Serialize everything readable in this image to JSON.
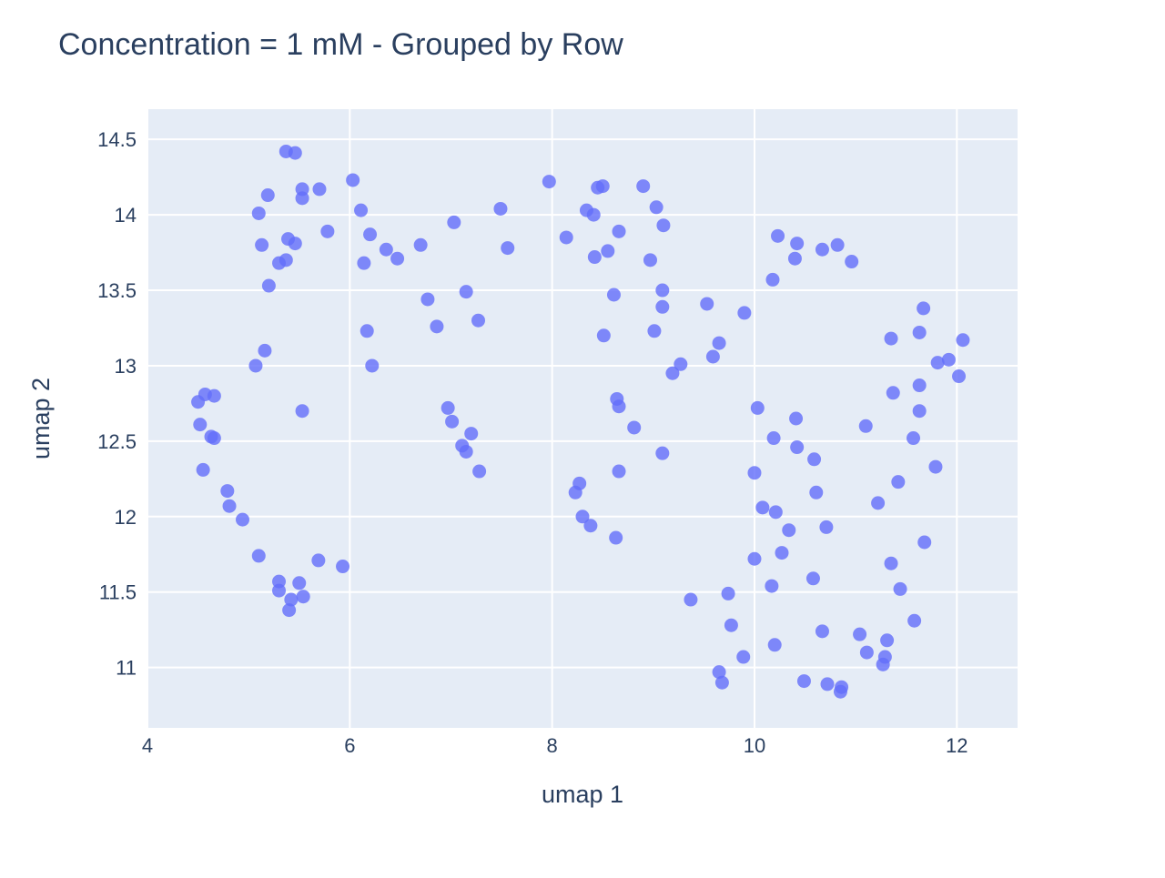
{
  "chart_data": {
    "type": "scatter",
    "title": "Concentration = 1 mM - Grouped by Row",
    "xlabel": "umap 1",
    "ylabel": "umap 2",
    "xlim": [
      4.0,
      12.6
    ],
    "ylim": [
      10.6,
      14.7
    ],
    "x_ticks": [
      4,
      6,
      8,
      10,
      12
    ],
    "x_tick_labels": [
      "4",
      "6",
      "8",
      "10",
      "12"
    ],
    "y_ticks": [
      11,
      11.5,
      12,
      12.5,
      13,
      13.5,
      14,
      14.5
    ],
    "y_tick_labels": [
      "11",
      "11.5",
      "12",
      "12.5",
      "13",
      "13.5",
      "14",
      "14.5"
    ],
    "grid": true,
    "plot_background": "#e5ecf6",
    "grid_color": "#ffffff",
    "marker_color": "#636efa",
    "marker_opacity": 0.8,
    "text_color": "#2a3f5f",
    "series": [
      {
        "points": [
          [
            5.37,
            14.42
          ],
          [
            5.46,
            14.41
          ],
          [
            5.53,
            14.17
          ],
          [
            5.7,
            14.17
          ],
          [
            5.53,
            14.11
          ],
          [
            5.19,
            14.13
          ],
          [
            5.1,
            14.01
          ],
          [
            5.39,
            13.84
          ],
          [
            5.46,
            13.81
          ],
          [
            5.13,
            13.8
          ],
          [
            5.37,
            13.7
          ],
          [
            5.3,
            13.68
          ],
          [
            5.78,
            13.89
          ],
          [
            5.2,
            13.53
          ],
          [
            5.16,
            13.1
          ],
          [
            5.07,
            13.0
          ],
          [
            5.53,
            12.7
          ],
          [
            4.5,
            12.76
          ],
          [
            4.57,
            12.81
          ],
          [
            4.66,
            12.8
          ],
          [
            4.52,
            12.61
          ],
          [
            4.63,
            12.53
          ],
          [
            4.66,
            12.52
          ],
          [
            4.55,
            12.31
          ],
          [
            4.79,
            12.17
          ],
          [
            4.81,
            12.07
          ],
          [
            4.94,
            11.98
          ],
          [
            5.1,
            11.74
          ],
          [
            5.69,
            11.71
          ],
          [
            5.93,
            11.67
          ],
          [
            5.3,
            11.57
          ],
          [
            5.5,
            11.56
          ],
          [
            5.3,
            11.51
          ],
          [
            5.42,
            11.45
          ],
          [
            5.54,
            11.47
          ],
          [
            5.4,
            11.38
          ],
          [
            6.03,
            14.23
          ],
          [
            6.11,
            14.03
          ],
          [
            6.2,
            13.87
          ],
          [
            6.36,
            13.77
          ],
          [
            6.14,
            13.68
          ],
          [
            6.47,
            13.71
          ],
          [
            6.7,
            13.8
          ],
          [
            6.17,
            13.23
          ],
          [
            6.22,
            13.0
          ],
          [
            7.03,
            13.95
          ],
          [
            6.77,
            13.44
          ],
          [
            6.86,
            13.26
          ],
          [
            7.15,
            13.49
          ],
          [
            7.27,
            13.3
          ],
          [
            7.49,
            14.04
          ],
          [
            7.56,
            13.78
          ],
          [
            6.97,
            12.72
          ],
          [
            7.01,
            12.63
          ],
          [
            7.2,
            12.55
          ],
          [
            7.11,
            12.47
          ],
          [
            7.15,
            12.43
          ],
          [
            7.28,
            12.3
          ],
          [
            7.97,
            14.22
          ],
          [
            8.14,
            13.85
          ],
          [
            8.34,
            14.03
          ],
          [
            8.41,
            14.0
          ],
          [
            8.45,
            14.18
          ],
          [
            8.5,
            14.19
          ],
          [
            8.66,
            13.89
          ],
          [
            8.42,
            13.72
          ],
          [
            8.55,
            13.76
          ],
          [
            8.61,
            13.47
          ],
          [
            8.9,
            14.19
          ],
          [
            9.03,
            14.05
          ],
          [
            9.1,
            13.93
          ],
          [
            8.97,
            13.7
          ],
          [
            9.09,
            13.5
          ],
          [
            9.09,
            13.39
          ],
          [
            9.01,
            13.23
          ],
          [
            8.51,
            13.2
          ],
          [
            9.27,
            13.01
          ],
          [
            9.19,
            12.95
          ],
          [
            8.64,
            12.78
          ],
          [
            8.66,
            12.73
          ],
          [
            8.81,
            12.59
          ],
          [
            9.09,
            12.42
          ],
          [
            8.66,
            12.3
          ],
          [
            8.27,
            12.22
          ],
          [
            8.23,
            12.16
          ],
          [
            8.3,
            12.0
          ],
          [
            8.38,
            11.94
          ],
          [
            8.63,
            11.86
          ],
          [
            9.53,
            13.41
          ],
          [
            9.65,
            13.15
          ],
          [
            9.59,
            13.06
          ],
          [
            9.9,
            13.35
          ],
          [
            10.23,
            13.86
          ],
          [
            10.42,
            13.81
          ],
          [
            10.18,
            13.57
          ],
          [
            10.4,
            13.71
          ],
          [
            10.67,
            13.77
          ],
          [
            10.82,
            13.8
          ],
          [
            10.96,
            13.69
          ],
          [
            10.03,
            12.72
          ],
          [
            10.19,
            12.52
          ],
          [
            10.41,
            12.65
          ],
          [
            10.42,
            12.46
          ],
          [
            10.59,
            12.38
          ],
          [
            10.0,
            12.29
          ],
          [
            10.61,
            12.16
          ],
          [
            10.08,
            12.06
          ],
          [
            10.21,
            12.03
          ],
          [
            10.34,
            11.91
          ],
          [
            10.71,
            11.93
          ],
          [
            10.0,
            11.72
          ],
          [
            10.27,
            11.76
          ],
          [
            10.17,
            11.54
          ],
          [
            10.58,
            11.59
          ],
          [
            9.37,
            11.45
          ],
          [
            9.74,
            11.49
          ],
          [
            9.77,
            11.28
          ],
          [
            9.89,
            11.07
          ],
          [
            10.2,
            11.15
          ],
          [
            10.67,
            11.24
          ],
          [
            9.65,
            10.97
          ],
          [
            9.68,
            10.9
          ],
          [
            10.49,
            10.91
          ],
          [
            10.72,
            10.89
          ],
          [
            10.86,
            10.87
          ],
          [
            10.85,
            10.84
          ],
          [
            11.67,
            13.38
          ],
          [
            11.35,
            13.18
          ],
          [
            11.63,
            13.22
          ],
          [
            12.06,
            13.17
          ],
          [
            11.92,
            13.04
          ],
          [
            11.81,
            13.02
          ],
          [
            12.02,
            12.93
          ],
          [
            11.63,
            12.87
          ],
          [
            11.37,
            12.82
          ],
          [
            11.63,
            12.7
          ],
          [
            11.1,
            12.6
          ],
          [
            11.57,
            12.52
          ],
          [
            11.79,
            12.33
          ],
          [
            11.42,
            12.23
          ],
          [
            11.22,
            12.09
          ],
          [
            11.68,
            11.83
          ],
          [
            11.35,
            11.69
          ],
          [
            11.44,
            11.52
          ],
          [
            11.58,
            11.31
          ],
          [
            11.04,
            11.22
          ],
          [
            11.31,
            11.18
          ],
          [
            11.11,
            11.1
          ],
          [
            11.29,
            11.07
          ],
          [
            11.27,
            11.02
          ]
        ]
      }
    ]
  }
}
